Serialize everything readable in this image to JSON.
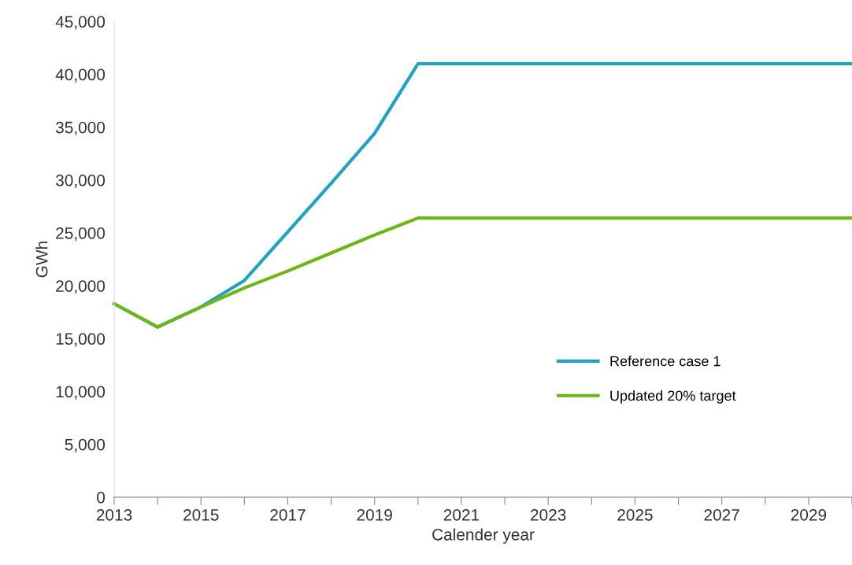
{
  "chart_data": {
    "type": "line",
    "xlabel": "Calender year",
    "ylabel": "GWh",
    "x": [
      2013,
      2014,
      2015,
      2016,
      2017,
      2018,
      2019,
      2020,
      2021,
      2022,
      2023,
      2024,
      2025,
      2026,
      2027,
      2028,
      2029,
      2030
    ],
    "series": [
      {
        "name": "Reference case 1",
        "color": "#1fa3c4",
        "values": [
          18300,
          16100,
          18000,
          20500,
          25100,
          29700,
          34400,
          41000,
          41000,
          41000,
          41000,
          41000,
          41000,
          41000,
          41000,
          41000,
          41000,
          41000
        ]
      },
      {
        "name": "Updated 20% target",
        "color": "#6cb617",
        "values": [
          18300,
          16100,
          18000,
          19800,
          21400,
          23100,
          24800,
          26400,
          26400,
          26400,
          26400,
          26400,
          26400,
          26400,
          26400,
          26400,
          26400,
          26400
        ]
      }
    ],
    "xlim": [
      2013,
      2030
    ],
    "xticks": [
      2013,
      {
        "value": 2014,
        "label": null
      },
      2015,
      {
        "value": 2016,
        "label": null
      },
      2017,
      {
        "value": 2018,
        "label": null
      },
      2019,
      {
        "value": 2020,
        "label": null
      },
      2021,
      {
        "value": 2022,
        "label": null
      },
      2023,
      {
        "value": 2024,
        "label": null
      },
      2025,
      {
        "value": 2026,
        "label": null
      },
      2027,
      {
        "value": 2028,
        "label": null
      },
      2029,
      {
        "value": 2030,
        "label": null
      }
    ],
    "ylim": [
      0,
      45000
    ],
    "yticks": [
      {
        "value": 0,
        "label": "0"
      },
      {
        "value": 5000,
        "label": "5,000"
      },
      {
        "value": 10000,
        "label": "10,000"
      },
      {
        "value": 15000,
        "label": "15,000"
      },
      {
        "value": 20000,
        "label": "20,000"
      },
      {
        "value": 25000,
        "label": "25,000"
      },
      {
        "value": 30000,
        "label": "30,000"
      },
      {
        "value": 35000,
        "label": "35,000"
      },
      {
        "value": 40000,
        "label": "40,000"
      },
      {
        "value": 45000,
        "label": "45,000"
      }
    ],
    "grid": false,
    "legend": "lower right",
    "marker": "none",
    "line_style": "solid"
  }
}
